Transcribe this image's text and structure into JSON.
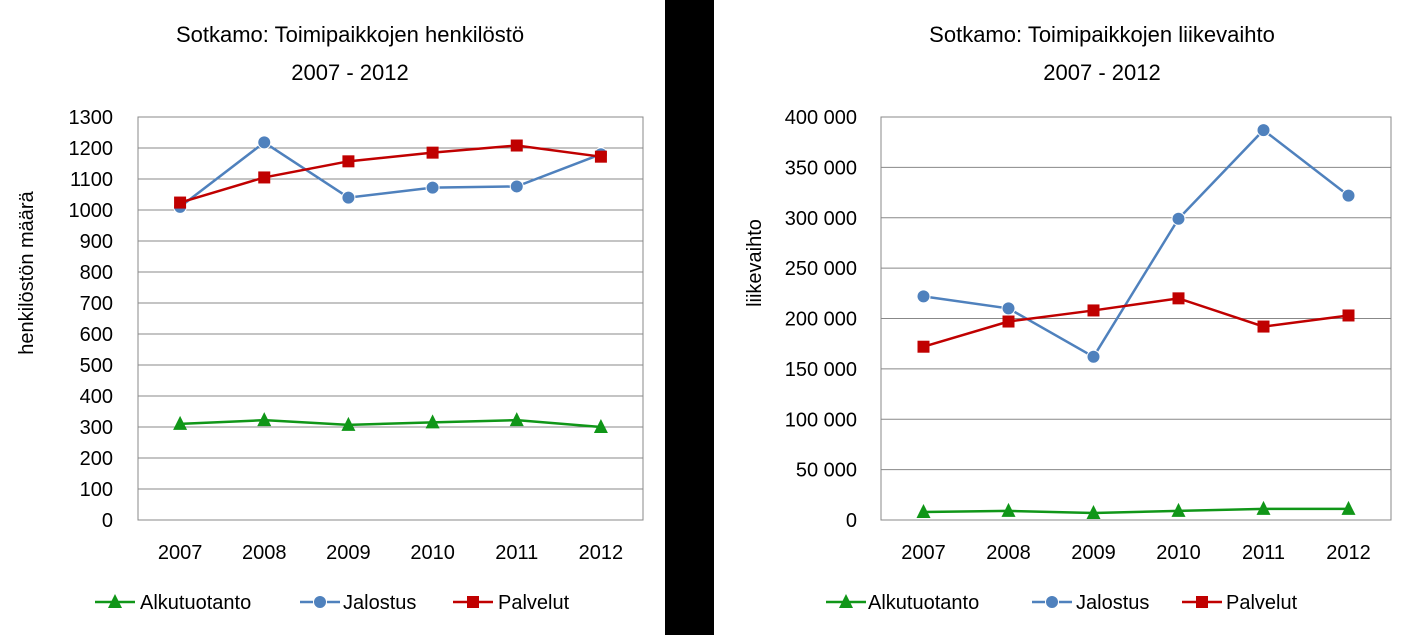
{
  "chart_data": [
    {
      "type": "line",
      "title": "Sotkamo: Toimipaikkojen henkilöstö",
      "subtitle": "2007 - 2012",
      "xlabel": "",
      "ylabel": "henkilöstön määrä",
      "categories": [
        "2007",
        "2008",
        "2009",
        "2010",
        "2011",
        "2012"
      ],
      "ylim": [
        0,
        1300
      ],
      "yticks": [
        0,
        100,
        200,
        300,
        400,
        500,
        600,
        700,
        800,
        900,
        1000,
        1100,
        1200,
        1300
      ],
      "ytick_labels": [
        "0",
        "100",
        "200",
        "300",
        "400",
        "500",
        "600",
        "700",
        "800",
        "900",
        "1000",
        "1100",
        "1200",
        "1300"
      ],
      "grid": true,
      "legend": "bottom",
      "series": [
        {
          "name": "Alkutuotanto",
          "color": "#109618",
          "marker": "triangle",
          "values": [
            310,
            322,
            307,
            315,
            322,
            300
          ]
        },
        {
          "name": "Jalostus",
          "color": "#4f81bd",
          "marker": "circle",
          "values": [
            1010,
            1218,
            1040,
            1072,
            1076,
            1180
          ]
        },
        {
          "name": "Palvelut",
          "color": "#c00000",
          "marker": "square",
          "values": [
            1024,
            1105,
            1157,
            1185,
            1208,
            1172
          ]
        }
      ]
    },
    {
      "type": "line",
      "title": "Sotkamo: Toimipaikkojen liikevaihto",
      "subtitle": "2007 - 2012",
      "xlabel": "",
      "ylabel": "liikevaihto",
      "categories": [
        "2007",
        "2008",
        "2009",
        "2010",
        "2011",
        "2012"
      ],
      "ylim": [
        0,
        400000
      ],
      "yticks": [
        0,
        50000,
        100000,
        150000,
        200000,
        250000,
        300000,
        350000,
        400000
      ],
      "ytick_labels": [
        "0",
        "50 000",
        "100 000",
        "150 000",
        "200 000",
        "250 000",
        "300 000",
        "350 000",
        "400 000"
      ],
      "grid": true,
      "legend": "bottom",
      "series": [
        {
          "name": "Alkutuotanto",
          "color": "#109618",
          "marker": "triangle",
          "values": [
            8000,
            9000,
            7000,
            9000,
            11000,
            11000
          ]
        },
        {
          "name": "Jalostus",
          "color": "#4f81bd",
          "marker": "circle",
          "values": [
            222000,
            210000,
            162000,
            299000,
            387000,
            322000
          ]
        },
        {
          "name": "Palvelut",
          "color": "#c00000",
          "marker": "square",
          "values": [
            172000,
            197000,
            208000,
            220000,
            192000,
            203000
          ]
        }
      ]
    }
  ]
}
